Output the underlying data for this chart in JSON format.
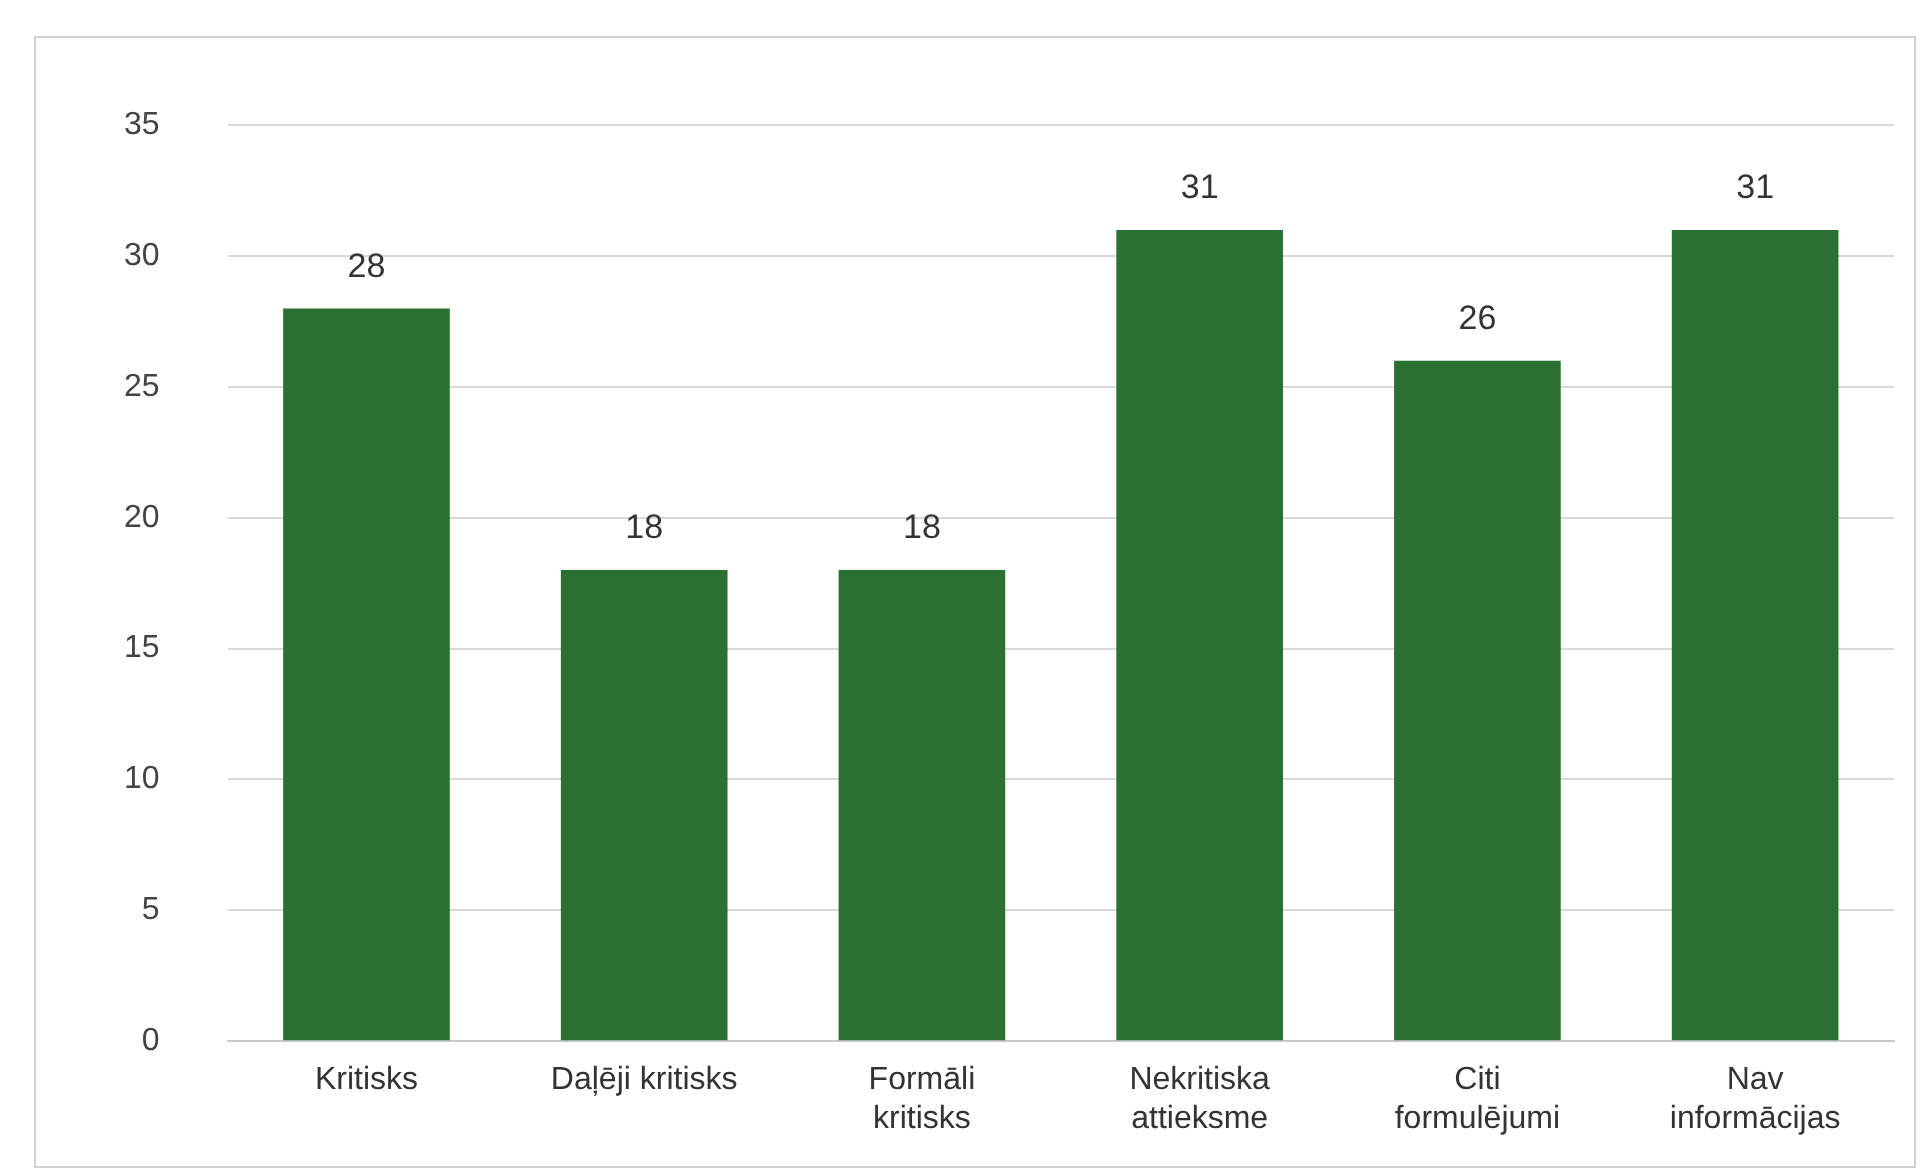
{
  "chart_data": {
    "type": "bar",
    "categories": [
      "Kritisks",
      "Daļēji kritisks",
      "Formāli kritisks",
      "Nekritiska attieksme",
      "Citi formulējumi",
      "Nav informācijas"
    ],
    "values": [
      28,
      18,
      18,
      31,
      26,
      31
    ],
    "color": "#2a7030",
    "ylim": [
      0,
      35
    ],
    "yticks": [
      0,
      5,
      10,
      15,
      20,
      25,
      30,
      35
    ],
    "grid": "y",
    "legend": false,
    "data_labels": true
  }
}
